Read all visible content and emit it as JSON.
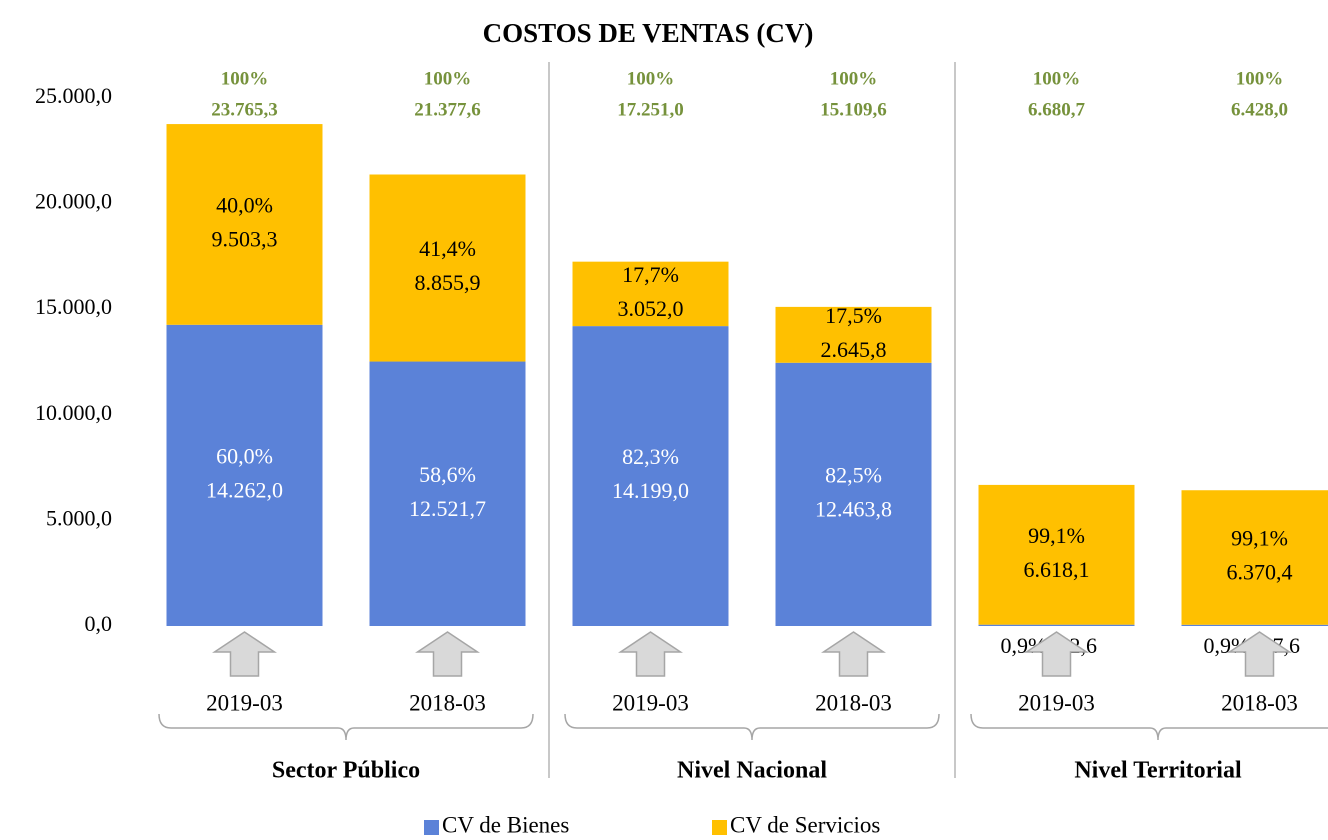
{
  "chart_data": {
    "type": "stacked_bar",
    "title": "COSTOS DE VENTAS (CV)",
    "categories": [
      "2019-03",
      "2018-03",
      "2019-03",
      "2018-03",
      "2019-03",
      "2018-03"
    ],
    "groups": [
      "Sector Público",
      "Nivel Nacional",
      "Nivel Territorial"
    ],
    "series": [
      {
        "name": "CV de Bienes",
        "color": "#5b82d8",
        "values": [
          14262.0,
          12521.7,
          14199.0,
          12463.8,
          62.6,
          57.6
        ],
        "value_labels": [
          "14.262,0",
          "12.521,7",
          "14.199,0",
          "12.463,8",
          "62,6",
          "57,6"
        ],
        "percent_labels": [
          "60,0%",
          "58,6%",
          "82,3%",
          "82,5%",
          "0,9%;",
          "0,9%;"
        ]
      },
      {
        "name": "CV de Servicios",
        "color": "#ffc000",
        "values": [
          9503.3,
          8855.9,
          3052.0,
          2645.8,
          6618.1,
          6370.4
        ],
        "value_labels": [
          "9.503,3",
          "8.855,9",
          "3.052,0",
          "2.645,8",
          "6.618,1",
          "6.370,4"
        ],
        "percent_labels": [
          "40,0%",
          "41,4%",
          "17,7%",
          "17,5%",
          "99,1%",
          "99,1%"
        ]
      }
    ],
    "totals": [
      23765.3,
      21377.6,
      17251.0,
      15109.6,
      6680.7,
      6428.0
    ],
    "total_labels": [
      "23.765,3",
      "21.377,6",
      "17.251,0",
      "15.109,6",
      "6.680,7",
      "6.428,0"
    ],
    "total_percent_labels": [
      "100%",
      "100%",
      "100%",
      "100%",
      "100%",
      "100%"
    ],
    "total_color": "#76923c",
    "ylim": [
      0,
      25000
    ],
    "yticks": [
      {
        "value": 0,
        "label": "0,0"
      },
      {
        "value": 5000,
        "label": "5.000,0"
      },
      {
        "value": 10000,
        "label": "10.000,0"
      },
      {
        "value": 15000,
        "label": "15.000,0"
      },
      {
        "value": 20000,
        "label": "20.000,0"
      },
      {
        "value": 25000,
        "label": "25.000,0"
      }
    ]
  }
}
